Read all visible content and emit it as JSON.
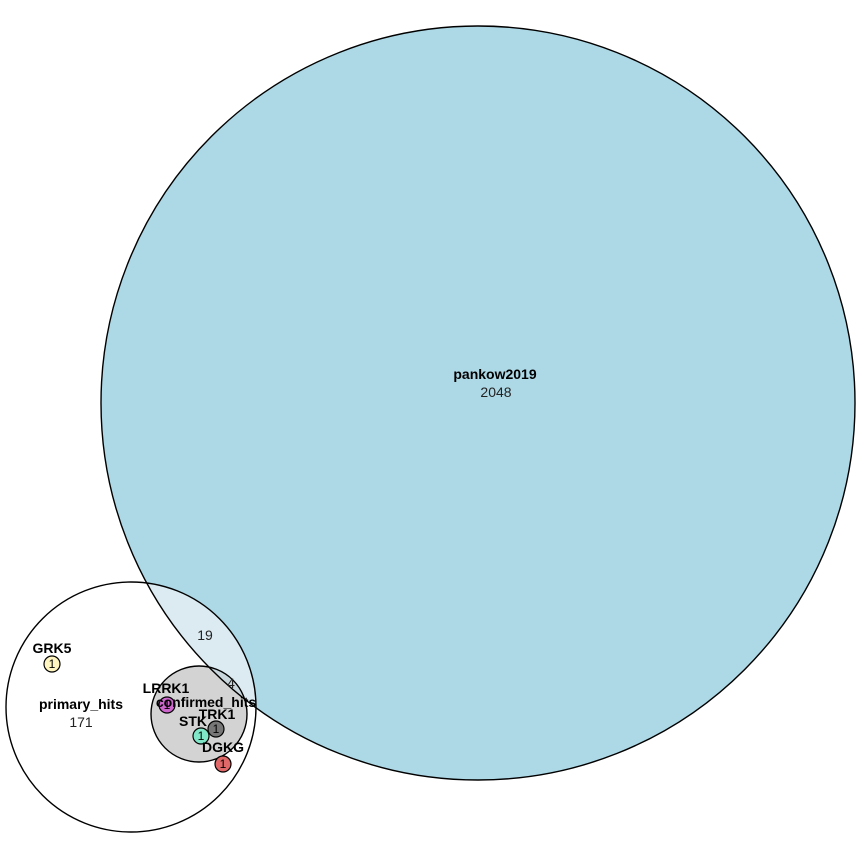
{
  "sets": [
    {
      "id": "pankow2019",
      "name": "pankow2019",
      "count": "2048",
      "fill": "#add8e6"
    },
    {
      "id": "primary_hits",
      "name": "primary_hits",
      "count": "171",
      "fill": "#ffffff"
    },
    {
      "id": "confirmed_hits",
      "name": "confirmed_hits",
      "count": "",
      "fill": "#d3d3d3"
    }
  ],
  "overlaps": [
    {
      "id": "primary-pankow",
      "count": "19"
    },
    {
      "id": "confirmed-pankow",
      "count": "4"
    }
  ],
  "elements": [
    {
      "id": "grk5",
      "name": "GRK5",
      "count": "1",
      "color": "#fff5c0"
    },
    {
      "id": "lrrk1",
      "name": "LRRK1",
      "count": "1",
      "color": "#cc66cc"
    },
    {
      "id": "trk1",
      "name": "TRK1",
      "count": "1",
      "color": "#777777"
    },
    {
      "id": "stk",
      "name": "STK",
      "count": "1",
      "color": "#7fe6c8"
    },
    {
      "id": "dgkg",
      "name": "DGKG",
      "count": "1",
      "color": "#e06868"
    }
  ]
}
